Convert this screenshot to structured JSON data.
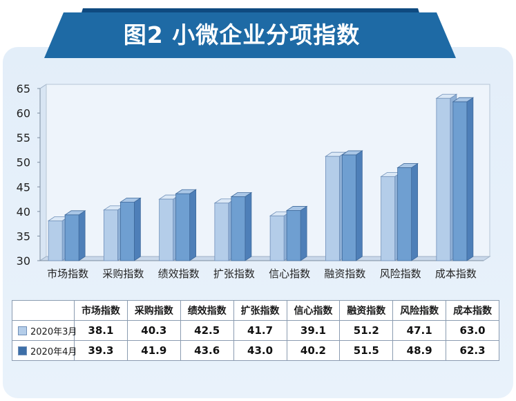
{
  "title": "图2 小微企业分项指数",
  "colors": {
    "banner": "#1e6aa5",
    "banner_dark": "#0f4a80",
    "series_mar": "#b4cde9",
    "series_apr": "#6f9fd1"
  },
  "chart_data": {
    "type": "bar",
    "title": "图2 小微企业分项指数",
    "categories": [
      "市场指数",
      "采购指数",
      "绩效指数",
      "扩张指数",
      "信心指数",
      "融资指数",
      "风险指数",
      "成本指数"
    ],
    "series": [
      {
        "name": "2020年3月",
        "values": [
          38.1,
          40.3,
          42.5,
          41.7,
          39.1,
          51.2,
          47.1,
          63.0
        ]
      },
      {
        "name": "2020年4月",
        "values": [
          39.3,
          41.9,
          43.6,
          43.0,
          40.2,
          51.5,
          48.9,
          62.3
        ]
      }
    ],
    "ylim": [
      30,
      65
    ],
    "yticks": [
      30,
      35,
      40,
      45,
      50,
      55,
      60,
      65
    ],
    "grid": false,
    "bar_style": "3d",
    "legend": "table-below"
  },
  "table": {
    "row_labels": [
      "2020年3月",
      "2020年4月"
    ],
    "values": [
      [
        "38.1",
        "40.3",
        "42.5",
        "41.7",
        "39.1",
        "51.2",
        "47.1",
        "63.0"
      ],
      [
        "39.3",
        "41.9",
        "43.6",
        "43.0",
        "40.2",
        "51.5",
        "48.9",
        "62.3"
      ]
    ]
  }
}
